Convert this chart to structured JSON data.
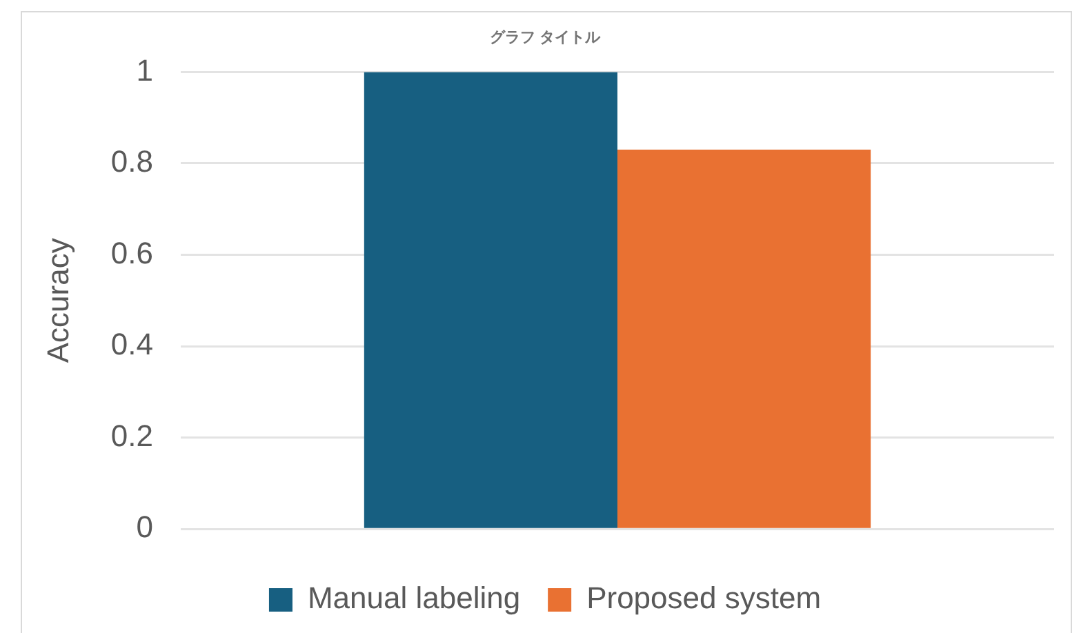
{
  "chart_data": {
    "type": "bar",
    "title": "グラフ タイトル",
    "ylabel": "Accuracy",
    "categories": [
      null
    ],
    "series": [
      {
        "name": "Manual labeling",
        "color": "#175f81",
        "values": [
          1
        ]
      },
      {
        "name": "Proposed system",
        "color": "#e97132",
        "values": [
          0.83
        ]
      }
    ],
    "ylim": [
      0,
      1
    ],
    "yticks": [
      0,
      0.2,
      0.4,
      0.6,
      0.8,
      1
    ],
    "grid": "y",
    "legend": "bottom"
  }
}
